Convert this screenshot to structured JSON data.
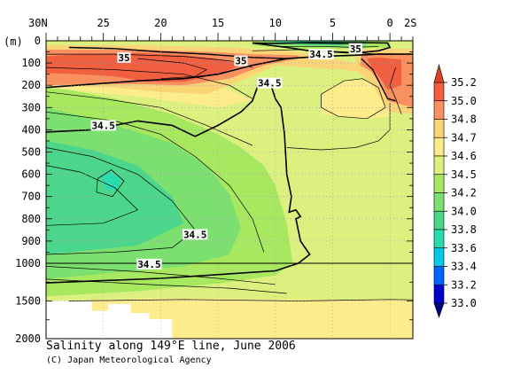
{
  "chart_data": {
    "type": "heatmap",
    "title": "Salinity along 149°E line, June 2006",
    "credit": "(C) Japan Meteorological Agency",
    "ylabel": "(m)",
    "x_tick_labels": [
      "30N",
      "25",
      "20",
      "15",
      "10",
      "5",
      "0",
      "2S"
    ],
    "x_tick_values": [
      30,
      25,
      20,
      15,
      10,
      5,
      0,
      -2
    ],
    "xlim": [
      30,
      -2
    ],
    "y_tick_labels": [
      "0",
      "100",
      "200",
      "300",
      "400",
      "500",
      "600",
      "700",
      "800",
      "900",
      "1000",
      "1500",
      "2000"
    ],
    "y_tick_values": [
      0,
      100,
      200,
      300,
      400,
      500,
      600,
      700,
      800,
      900,
      1000,
      1500,
      2000
    ],
    "ylim": [
      0,
      2000
    ],
    "y_scale_break": 1000,
    "grid": true,
    "colorbar": {
      "labels": [
        "35.2",
        "35.0",
        "34.8",
        "34.7",
        "34.6",
        "34.5",
        "34.2",
        "34.0",
        "33.8",
        "33.6",
        "33.4",
        "33.2",
        "33.0"
      ],
      "colors": [
        "#f06040",
        "#f89060",
        "#fcd478",
        "#fcec8c",
        "#dcf080",
        "#a8e860",
        "#7ce070",
        "#4cd68c",
        "#28dcb0",
        "#08c8e8",
        "#0064f8",
        "#0000c8"
      ]
    },
    "contour_labels": [
      {
        "text": "35",
        "lat": 23.2,
        "depth": 75
      },
      {
        "text": "35",
        "lat": 13.0,
        "depth": 90
      },
      {
        "text": "35",
        "lat": 3.0,
        "depth": 35
      },
      {
        "text": "34.5",
        "lat": 6.0,
        "depth": 60
      },
      {
        "text": "34.5",
        "lat": 10.5,
        "depth": 190
      },
      {
        "text": "34.5",
        "lat": 25.0,
        "depth": 380
      },
      {
        "text": "34.5",
        "lat": 17.0,
        "depth": 870
      },
      {
        "text": "34.5",
        "lat": 21.0,
        "depth": 1010
      }
    ]
  }
}
